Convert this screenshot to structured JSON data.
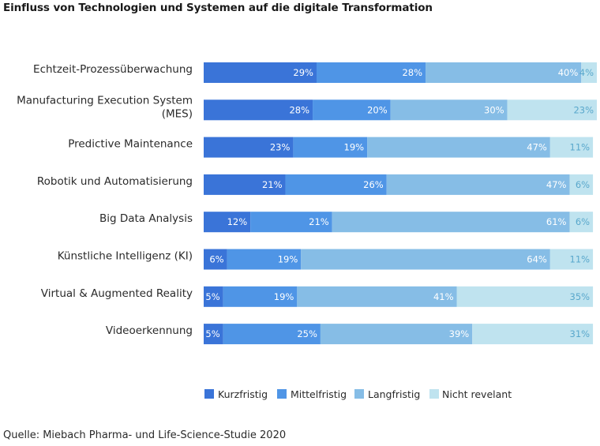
{
  "title": "Einfluss von Technologien und Systemen auf die digitale Transformation",
  "source": "Quelle: Miebach Pharma- und Life-Science-Studie 2020",
  "chart_data": {
    "type": "bar",
    "orientation": "horizontal",
    "stacked": true,
    "value_unit": "%",
    "categories": [
      [
        "Echtzeit-Prozessüberwachung"
      ],
      [
        "Manufacturing Execution System",
        "(MES)"
      ],
      [
        "Predictive Maintenance"
      ],
      [
        "Robotik und Automatisierung"
      ],
      [
        "Big Data Analysis"
      ],
      [
        "Künstliche Intelligenz (KI)"
      ],
      [
        "Virtual & Augmented Reality"
      ],
      [
        "Videoerkennung"
      ]
    ],
    "series": [
      {
        "name": "Kurzfristig",
        "color": "#3a74d8",
        "label_color": "#ffffff",
        "values": [
          29,
          28,
          23,
          21,
          12,
          6,
          5,
          5
        ]
      },
      {
        "name": "Mittelfristig",
        "color": "#4f95e6",
        "label_color": "#ffffff",
        "values": [
          28,
          20,
          19,
          26,
          21,
          19,
          19,
          25
        ]
      },
      {
        "name": "Langfristig",
        "color": "#86bde6",
        "label_color": "#ffffff",
        "values": [
          40,
          30,
          47,
          47,
          61,
          64,
          41,
          39
        ]
      },
      {
        "name": "Nicht revelant",
        "color": "#bfe3ef",
        "label_color": "#5aa8cc",
        "values": [
          4,
          23,
          11,
          6,
          6,
          11,
          35,
          31
        ]
      }
    ],
    "xlim": [
      0,
      101
    ],
    "grid": false,
    "legend_position": "bottom"
  }
}
